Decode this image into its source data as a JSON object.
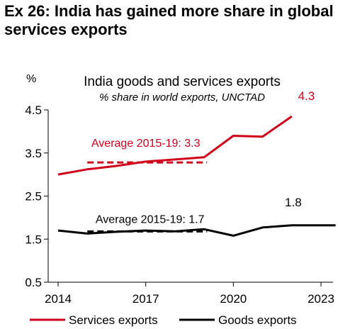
{
  "headline": "Ex 26: India has gained more share in global services exports",
  "chart_data": {
    "type": "line",
    "title": "India goods and services exports",
    "subtitle": "% share in world exports, UNCTAD",
    "ylabel": "%",
    "ylim": [
      0.5,
      4.5
    ],
    "yticks": [
      "4.5",
      "3.5",
      "2.5",
      "1.5",
      "0.5"
    ],
    "xlim": [
      2014,
      2023.5
    ],
    "xticks": [
      "2014",
      "2017",
      "2020",
      "2023"
    ],
    "grid": false,
    "legend_position": "bottom",
    "series": [
      {
        "name": "Services exports",
        "color": "#d0021b",
        "x": [
          2014,
          2015,
          2016,
          2017,
          2018,
          2019,
          2020,
          2021,
          2022
        ],
        "y": [
          3.0,
          3.12,
          3.2,
          3.3,
          3.35,
          3.4,
          3.9,
          3.88,
          4.35
        ],
        "end_label": "4.3",
        "average": {
          "x0": 2015,
          "x1": 2019.1,
          "y": 3.28,
          "label": "Average 2015-19: 3.3"
        }
      },
      {
        "name": "Goods exports",
        "color": "#000000",
        "x": [
          2014,
          2015,
          2016,
          2017,
          2018,
          2019,
          2020,
          2021,
          2022,
          2023.5
        ],
        "y": [
          1.7,
          1.63,
          1.67,
          1.7,
          1.68,
          1.73,
          1.58,
          1.77,
          1.82,
          1.82
        ],
        "end_label": "1.8",
        "average": {
          "x0": 2015,
          "x1": 2019.1,
          "y": 1.68,
          "label": "Average 2015-19: 1.7"
        }
      }
    ]
  }
}
